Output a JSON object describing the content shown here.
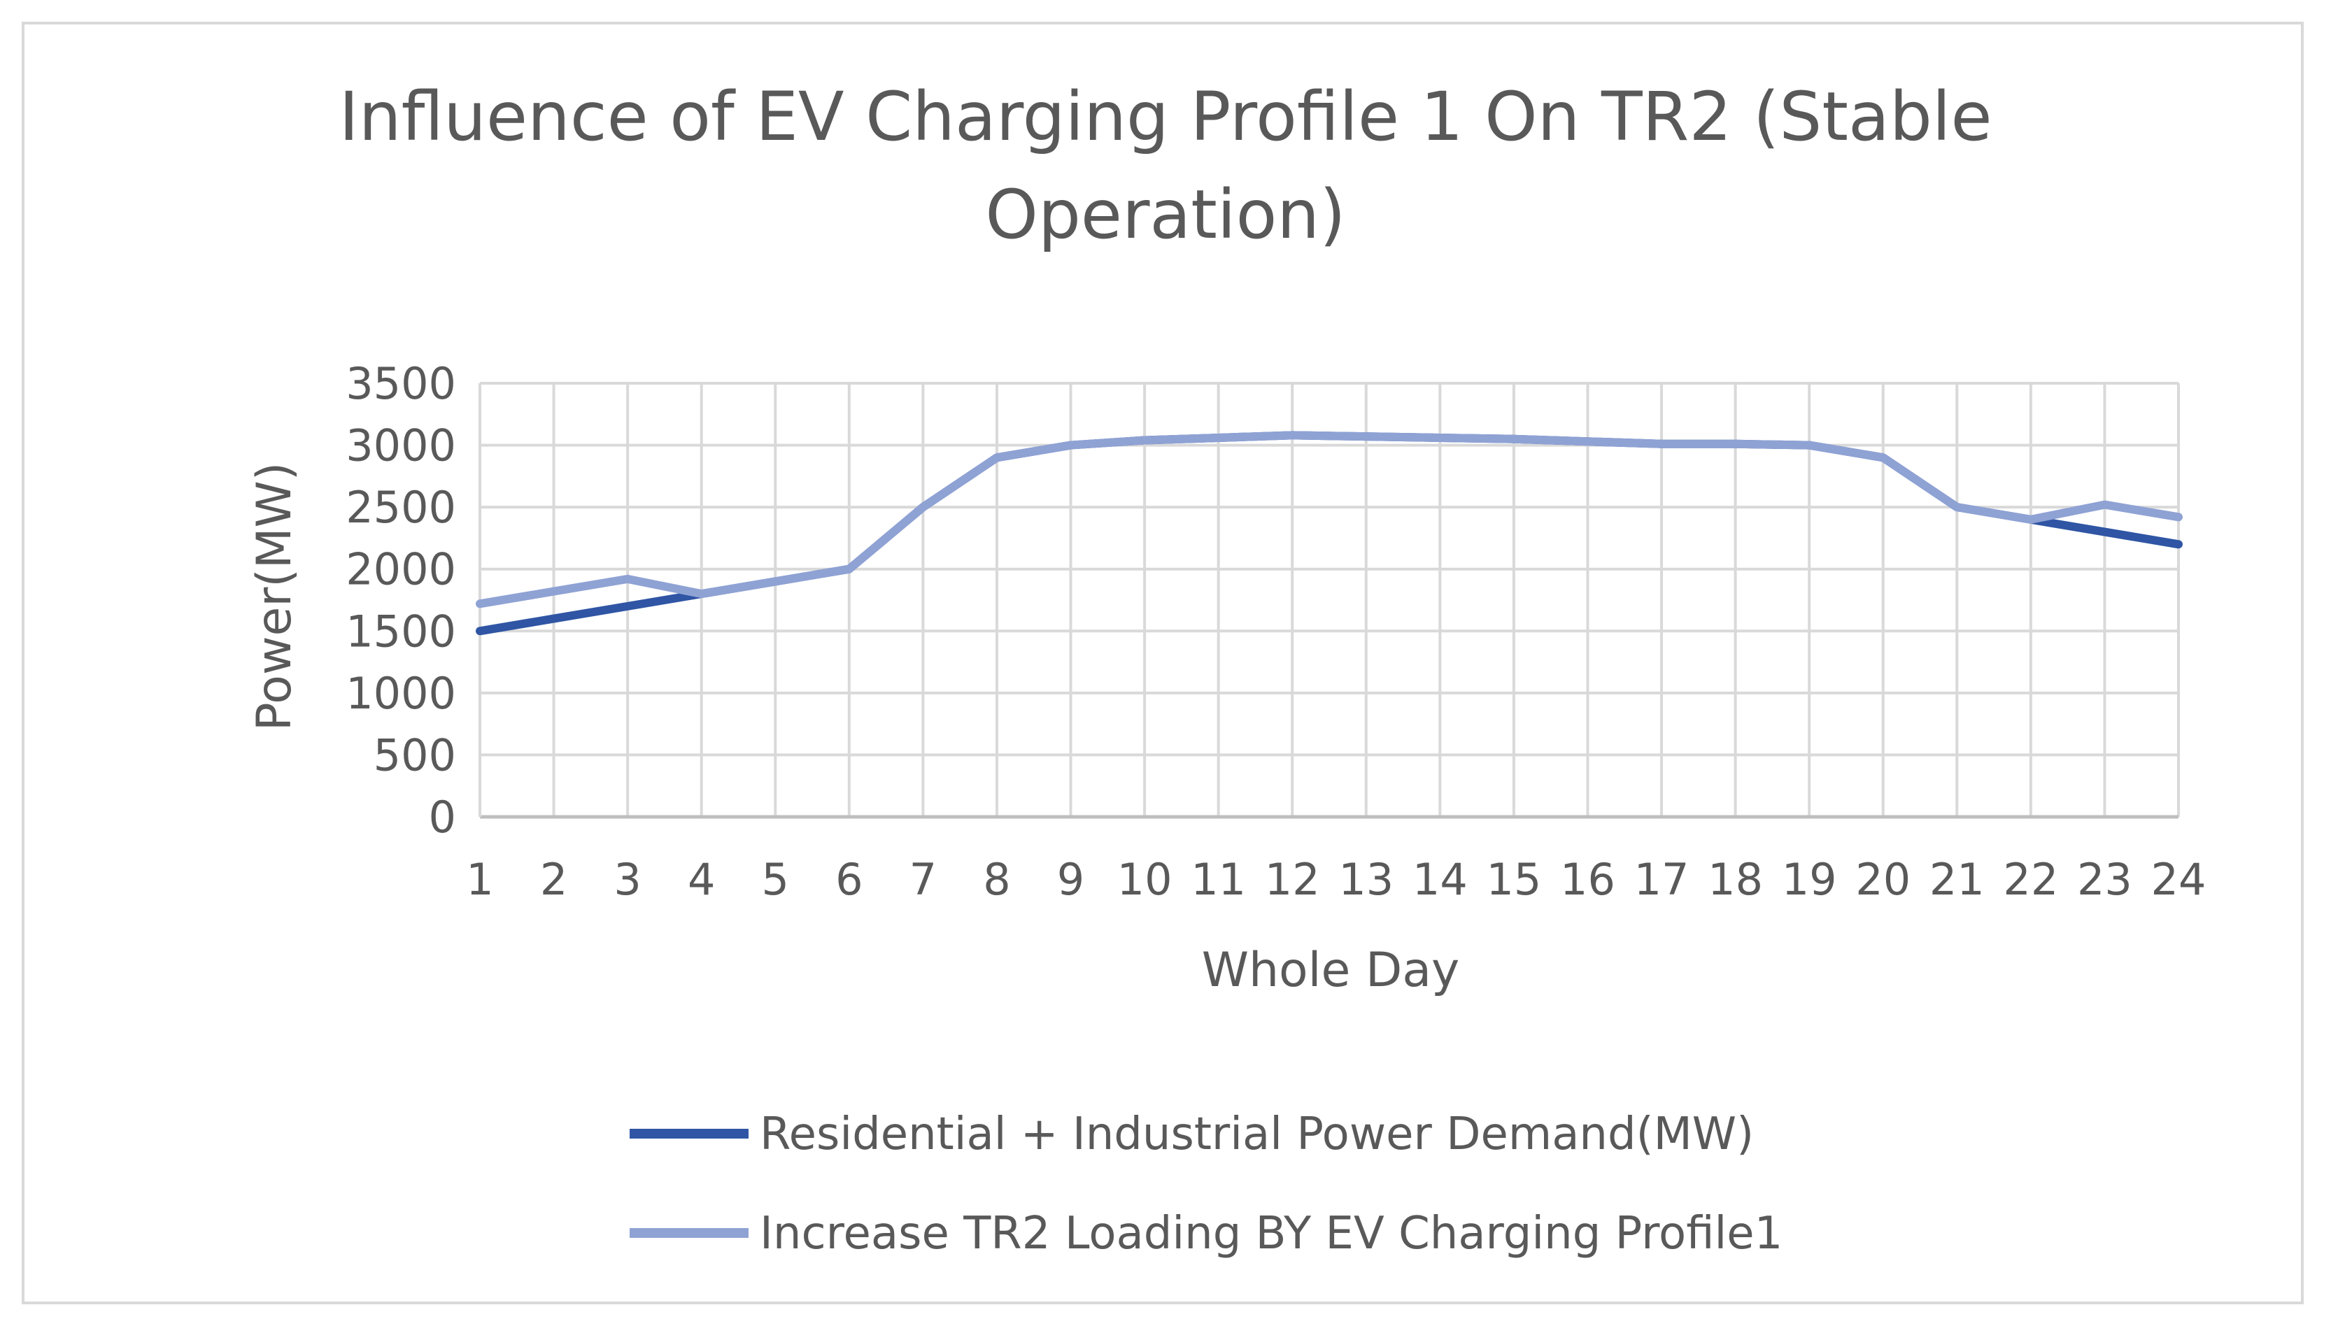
{
  "chart_data": {
    "type": "line",
    "title_lines": [
      "Influence of EV Charging Profile 1 On TR2 (Stable",
      "Operation)"
    ],
    "xlabel": "Whole Day",
    "ylabel": "Power(MW)",
    "categories": [
      "1",
      "2",
      "3",
      "4",
      "5",
      "6",
      "7",
      "8",
      "9",
      "10",
      "11",
      "12",
      "13",
      "14",
      "15",
      "16",
      "17",
      "18",
      "19",
      "20",
      "21",
      "22",
      "23",
      "24"
    ],
    "ylim": [
      0,
      3500
    ],
    "yticks": [
      0,
      500,
      1000,
      1500,
      2000,
      2500,
      3000,
      3500
    ],
    "grid": true,
    "legend_position": "bottom",
    "series": [
      {
        "name": "Residential + Industrial Power Demand(MW)",
        "color": "#2f55a4",
        "values": [
          1500,
          1600,
          1700,
          1800,
          1900,
          2000,
          2500,
          2900,
          3000,
          3040,
          3060,
          3080,
          3070,
          3060,
          3050,
          3030,
          3010,
          3010,
          3000,
          2900,
          2500,
          2400,
          2300,
          2200
        ]
      },
      {
        "name": "Increase TR2 Loading BY EV Charging Profile1",
        "color": "#8fa2d4",
        "values": [
          1720,
          1820,
          1920,
          1800,
          1900,
          2000,
          2500,
          2900,
          3000,
          3040,
          3060,
          3080,
          3070,
          3060,
          3050,
          3030,
          3010,
          3010,
          3000,
          2900,
          2500,
          2400,
          2520,
          2420
        ]
      }
    ]
  }
}
